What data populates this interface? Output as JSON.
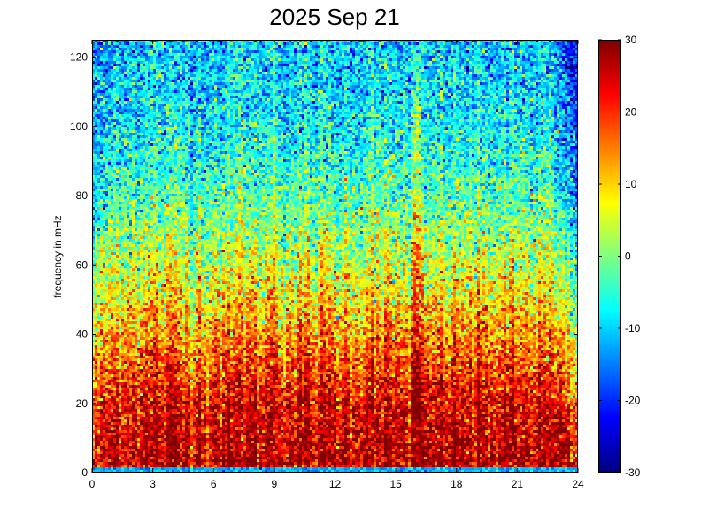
{
  "chart_data": {
    "type": "heatmap",
    "title": "2025 Sep 21",
    "xlabel": "",
    "ylabel": "frequency in mHz",
    "xlim": [
      0,
      24
    ],
    "ylim": [
      0,
      125
    ],
    "x_ticks": [
      "0",
      "3",
      "6",
      "9",
      "12",
      "15",
      "18",
      "21",
      "24"
    ],
    "y_ticks": [
      "0",
      "20",
      "40",
      "60",
      "80",
      "100",
      "120"
    ],
    "x_tick_values": [
      0,
      3,
      6,
      9,
      12,
      15,
      18,
      21,
      24
    ],
    "y_tick_values": [
      0,
      20,
      40,
      60,
      80,
      100,
      120
    ],
    "colorbar": {
      "range": [
        -30,
        30
      ],
      "ticks": [
        "-30",
        "-20",
        "-10",
        "0",
        "10",
        "20",
        "30"
      ],
      "tick_values": [
        -30,
        -20,
        -10,
        0,
        10,
        20,
        30
      ],
      "colormap": "jet"
    },
    "grid": false,
    "approx_power_profile": {
      "frequency_mHz": [
        0,
        2,
        5,
        10,
        20,
        30,
        40,
        50,
        60,
        80,
        100,
        125
      ],
      "level": [
        -10,
        27,
        27,
        26,
        24,
        19,
        14,
        9,
        5,
        -3,
        -8,
        -11
      ]
    },
    "vertical_streaks_hour": [
      7.4,
      9.0,
      13.8,
      15.9,
      16.1
    ],
    "quiet_edges_hour": [
      0.5,
      23.5
    ]
  }
}
